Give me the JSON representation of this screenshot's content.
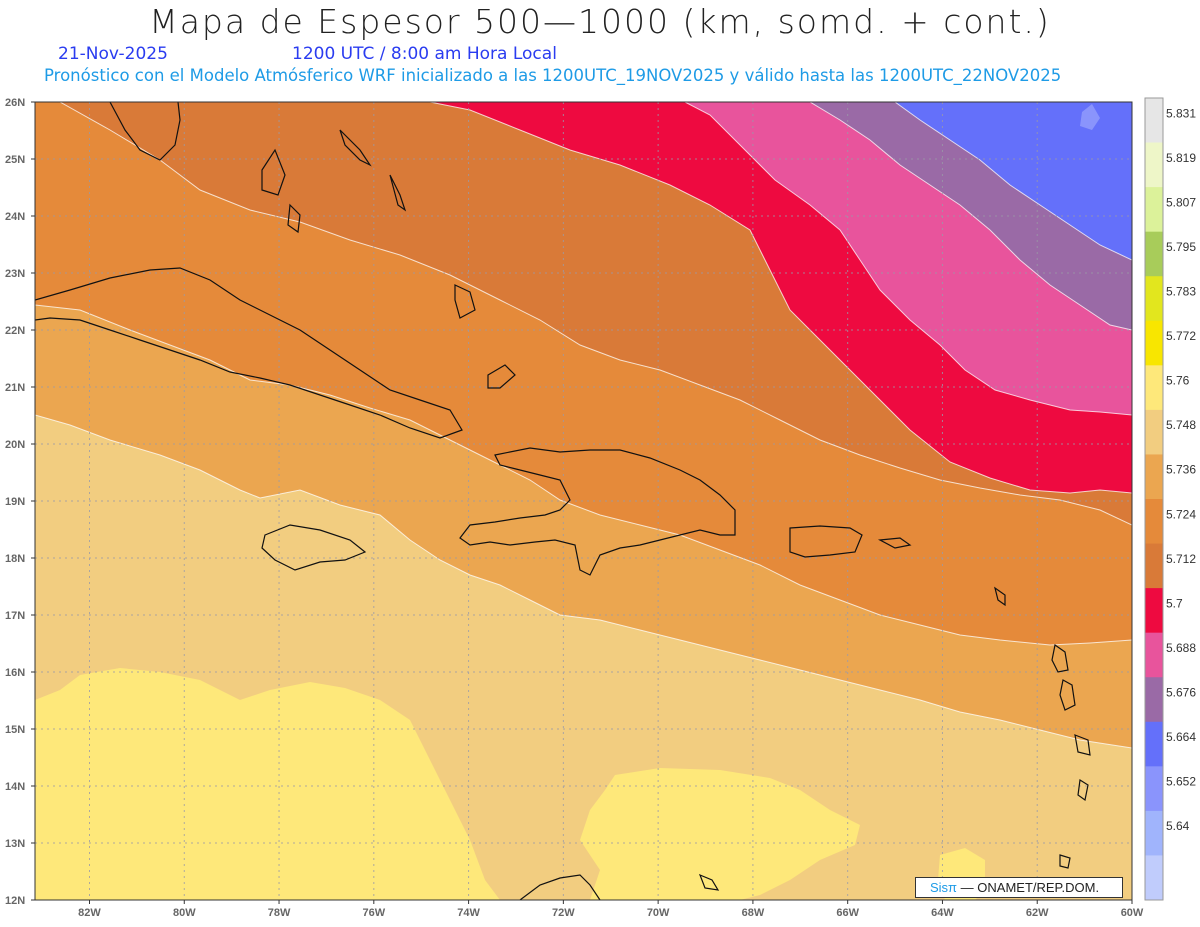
{
  "header": {
    "title": "Mapa de Espesor 500—1000 (km, somd. + cont.)",
    "date": "21-Nov-2025",
    "time": "1200 UTC / 8:00 am Hora Local",
    "info": "Pronóstico con el Modelo Atmósferico WRF inicializado a las 1200UTC_19NOV2025 y válido hasta las  1200UTC_22NOV2025"
  },
  "map": {
    "lat_labels": [
      "26N",
      "25N",
      "24N",
      "23N",
      "22N",
      "21N",
      "20N",
      "19N",
      "18N",
      "17N",
      "16N",
      "15N",
      "14N",
      "13N",
      "12N"
    ],
    "lon_labels": [
      "82W",
      "80W",
      "78W",
      "76W",
      "74W",
      "72W",
      "70W",
      "68W",
      "66W",
      "64W",
      "62W",
      "60W"
    ],
    "credit_brand": "Sisπ",
    "credit_text": "— ONAMET/REP.DOM."
  },
  "colorbar": {
    "levels": [
      "5.831",
      "5.819",
      "5.807",
      "5.795",
      "5.783",
      "5.772",
      "5.76",
      "5.748",
      "5.736",
      "5.724",
      "5.712",
      "5.7",
      "5.688",
      "5.676",
      "5.664",
      "5.652",
      "5.64"
    ],
    "colors": [
      "#e6e6e6",
      "#eef6c8",
      "#dcf29a",
      "#a8cc5a",
      "#e2e61e",
      "#f8e600",
      "#fee87a",
      "#f2cd80",
      "#eba650",
      "#e58a3a",
      "#d97a38",
      "#ee0a40",
      "#e8549c",
      "#9a6aa6",
      "#6470fa",
      "#8a94fc",
      "#a0b4fc",
      "#c0ccfc"
    ]
  },
  "colors": {
    "band_5748": "#f2cd80",
    "band_5736": "#eba650",
    "band_5724": "#e58a3a",
    "band_5712": "#d97a38",
    "band_5700": "#ee0a40",
    "band_5688": "#e8549c",
    "band_5676": "#9a6aa6",
    "band_5664": "#6470fa",
    "band_5760": "#fee87a"
  }
}
